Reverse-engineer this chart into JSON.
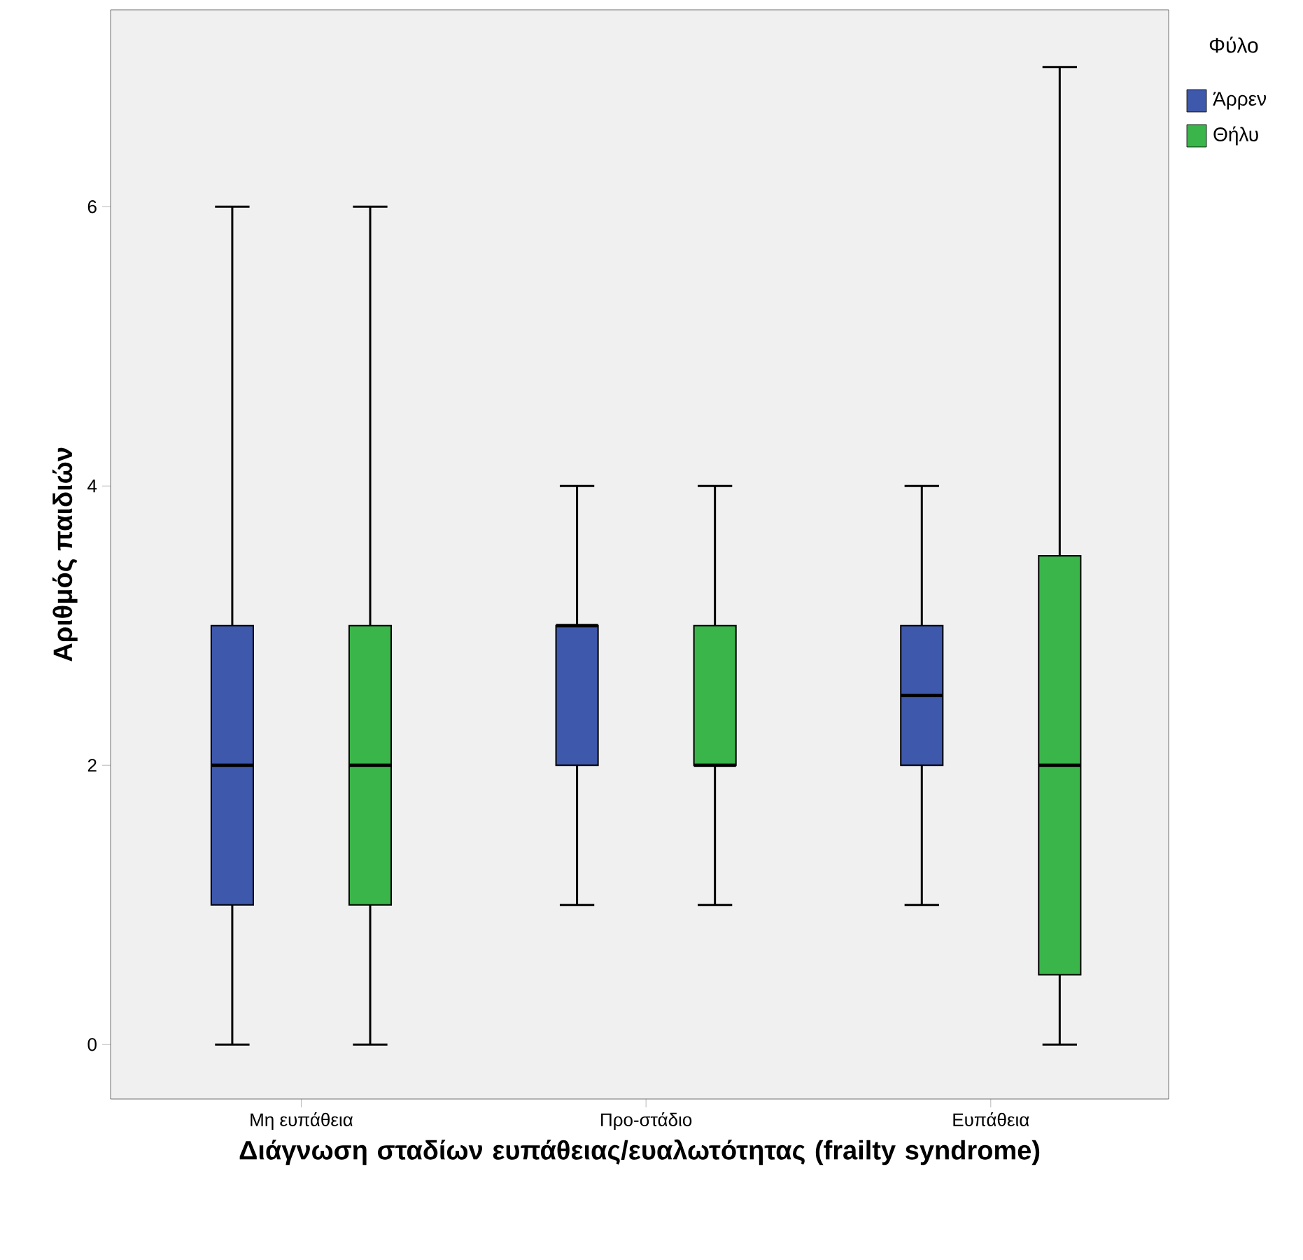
{
  "chart_data": {
    "type": "box",
    "xlabel": "Διάγνωση σταδίων ευπάθειας/ευαλωτότητας (frailty syndrome)",
    "ylabel": "Αριθμός παιδιών",
    "legend_title": "Φύλο",
    "legend": "top right",
    "categories": [
      "Μη ευπάθεια",
      "Προ-στάδιο",
      "Ευπάθεια"
    ],
    "ylim": [
      -0.39,
      7.41
    ],
    "yticks": [
      0,
      2,
      4,
      6
    ],
    "series": [
      {
        "name": "Άρρεν",
        "color": "#3e58ac",
        "boxes": [
          {
            "low": 0,
            "q1": 1,
            "median": 2,
            "q3": 3,
            "high": 6
          },
          {
            "low": 1,
            "q1": 2,
            "median": 3,
            "q3": 3,
            "high": 4
          },
          {
            "low": 1,
            "q1": 2,
            "median": 2.5,
            "q3": 3,
            "high": 4
          }
        ]
      },
      {
        "name": "Θήλυ",
        "color": "#3ab54a",
        "boxes": [
          {
            "low": 0,
            "q1": 1,
            "median": 2,
            "q3": 3,
            "high": 6
          },
          {
            "low": 1,
            "q1": 2,
            "median": 2,
            "q3": 3,
            "high": 4
          },
          {
            "low": 0,
            "q1": 0.5,
            "median": 2,
            "q3": 3.5,
            "high": 7
          }
        ]
      }
    ]
  }
}
